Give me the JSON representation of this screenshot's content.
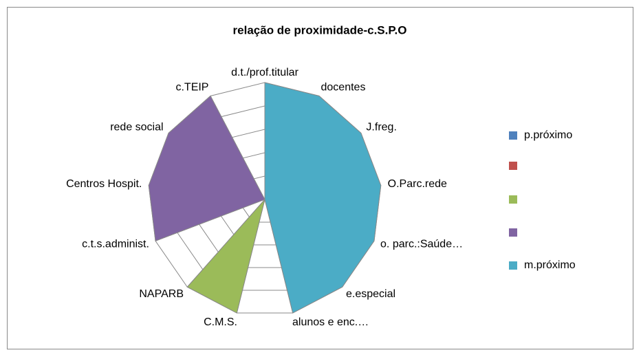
{
  "chart_data": {
    "type": "radar",
    "title": "relação de proximidade-c.S.P.O",
    "categories": [
      "d.t./prof.titular",
      "docentes",
      "J.freg.",
      "O.Parc.rede",
      "o. parc.:Saúde…",
      "e.especial",
      "alunos e enc.…",
      "C.M.S.",
      "NAPARB",
      "c.t.s.administ.",
      "Centros Hospit.",
      "rede social",
      "c.TEIP"
    ],
    "series": [
      {
        "name": "p.próximo",
        "color": "#4f81bd",
        "values": [
          0,
          0,
          0,
          0,
          0,
          0,
          0,
          0,
          0,
          0,
          0,
          0,
          0
        ]
      },
      {
        "color": "#c0504d",
        "values": [
          0,
          0,
          0,
          0,
          0,
          0,
          0,
          0,
          0,
          0,
          0,
          0,
          0
        ]
      },
      {
        "color": "#9bbb59",
        "values": [
          0,
          0,
          0,
          0,
          0,
          0,
          0,
          5,
          5,
          0,
          0,
          0,
          0
        ]
      },
      {
        "color": "#8064a2",
        "values": [
          0,
          0,
          0,
          0,
          0,
          0,
          0,
          0,
          0,
          5,
          5,
          5,
          5
        ]
      },
      {
        "name": "m.próximo",
        "color": "#4bacc6",
        "values": [
          5,
          5,
          5,
          5,
          5,
          5,
          5,
          0,
          0,
          0,
          0,
          0,
          0
        ]
      }
    ],
    "ylim": [
      0,
      5
    ],
    "yticks": [
      1,
      2,
      3,
      4,
      5
    ],
    "grid": true,
    "legend": "right"
  }
}
